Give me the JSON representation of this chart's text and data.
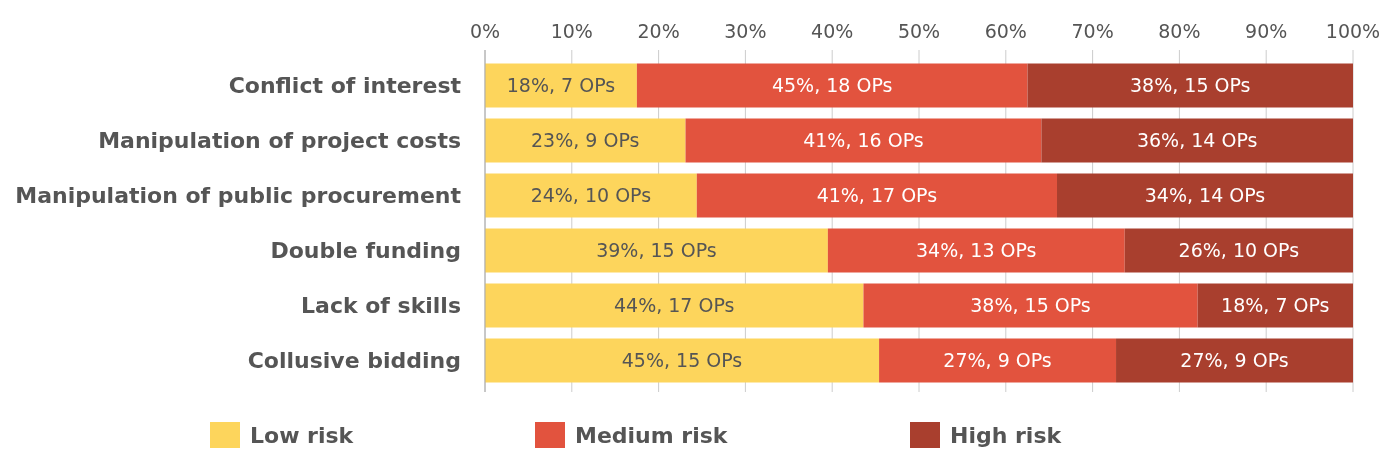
{
  "chart_data": {
    "type": "bar",
    "orientation": "horizontal",
    "stacked": true,
    "categories": [
      "Conflict of interest",
      "Manipulation of project costs",
      "Manipulation of public procurement",
      "Double funding",
      "Lack of skills",
      "Collusive bidding"
    ],
    "series": [
      {
        "name": "Low risk",
        "color": "#fdd55c",
        "values": [
          17.5,
          23.1,
          24.4,
          39.5,
          43.6,
          45.4
        ],
        "value_labels": [
          "18%, 7 OPs",
          "23%, 9 OPs",
          "24%, 10 OPs",
          "39%, 15 OPs",
          "44%, 17 OPs",
          "45%, 15 OPs"
        ]
      },
      {
        "name": "Medium risk",
        "color": "#e2533e",
        "values": [
          45,
          41.0,
          41.5,
          34.2,
          38.5,
          27.3
        ],
        "value_labels": [
          "45%, 18 OPs",
          "41%, 16 OPs",
          "41%, 17 OPs",
          "34%, 13 OPs",
          "38%, 15 OPs",
          "27%, 9 OPs"
        ]
      },
      {
        "name": "High risk",
        "color": "#a93f2e",
        "values": [
          37.5,
          35.9,
          34.1,
          26.3,
          17.9,
          27.3
        ],
        "value_labels": [
          "38%, 15 OPs",
          "36%, 14 OPs",
          "34%, 14 OPs",
          "26%, 10 OPs",
          "18%, 7 OPs",
          "27%, 9 OPs"
        ]
      }
    ],
    "xlim": [
      0,
      100
    ],
    "xticks": [
      {
        "value": 0,
        "label": "0%"
      },
      {
        "value": 10,
        "label": "10%"
      },
      {
        "value": 20,
        "label": "20%"
      },
      {
        "value": 30,
        "label": "30%"
      },
      {
        "value": 40,
        "label": "40%"
      },
      {
        "value": 50,
        "label": "50%"
      },
      {
        "value": 60,
        "label": "60%"
      },
      {
        "value": 70,
        "label": "70%"
      },
      {
        "value": 80,
        "label": "80%"
      },
      {
        "value": 90,
        "label": "90%"
      },
      {
        "value": 100,
        "label": "100%"
      }
    ],
    "grid": "x",
    "legend": "bottom"
  }
}
